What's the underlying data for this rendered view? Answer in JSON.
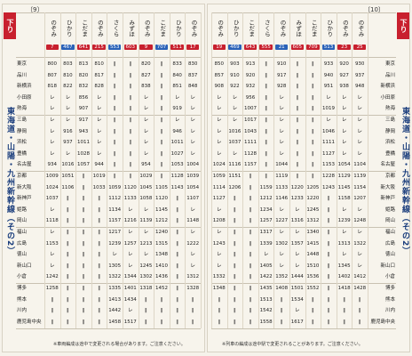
{
  "pages": [
    {
      "page_number": "〔9〕",
      "tab": "下り",
      "title": "東海道・山陽・九州新幹線（その2）",
      "footnote": "※車両編成は途中で変更される場合があります。ご注意ください。",
      "stations": [
        "東京",
        "品川",
        "新横浜",
        "小田原",
        "熱海",
        "三島",
        "静岡",
        "浜松",
        "豊橋",
        "名古屋",
        "京都",
        "新大阪",
        "新神戸",
        "姫路",
        "岡山",
        "福山",
        "広島",
        "徳山",
        "新山口",
        "小倉",
        "博多",
        "熊本",
        "川内",
        "鹿児島中央"
      ],
      "trains": [
        {
          "name": "のぞみ",
          "number": "7",
          "times": [
            "800",
            "807",
            "818",
            "レ",
            "レ",
            "レ",
            "レ",
            "レ",
            "レ",
            "934",
            "1009",
            "1024",
            "1037",
            "レ",
            "1118",
            "レ",
            "1153",
            "レ",
            "レ",
            "1242",
            "1258",
            "‖",
            "‖",
            "‖"
          ]
        },
        {
          "name": "ひかり",
          "number": "467",
          "times": [
            "803",
            "810",
            "822",
            "レ",
            "レ",
            "レ",
            "916",
            "937",
            "レ",
            "1016",
            "1051",
            "1106",
            "‖",
            "‖",
            "‖",
            "‖",
            "‖",
            "‖",
            "‖",
            "‖",
            "‖",
            "‖",
            "‖",
            "‖"
          ]
        },
        {
          "name": "こだま",
          "number": "641",
          "times": [
            "813",
            "820",
            "832",
            "856",
            "907",
            "917",
            "943",
            "1011",
            "1028",
            "1057",
            "‖",
            "‖",
            "‖",
            "‖",
            "‖",
            "‖",
            "‖",
            "‖",
            "‖",
            "‖",
            "‖",
            "‖",
            "‖",
            "‖"
          ]
        },
        {
          "name": "のぞみ",
          "number": "215",
          "times": [
            "810",
            "817",
            "828",
            "レ",
            "レ",
            "レ",
            "レ",
            "レ",
            "レ",
            "944",
            "1019",
            "1033",
            "‖",
            "‖",
            "‖",
            "‖",
            "‖",
            "‖",
            "‖",
            "‖",
            "‖",
            "‖",
            "‖",
            "‖"
          ]
        },
        {
          "name": "さくら",
          "number": "553",
          "times": [
            "‖",
            "‖",
            "‖",
            "‖",
            "‖",
            "‖",
            "‖",
            "‖",
            "‖",
            "‖",
            "‖",
            "1059",
            "1112",
            "1134",
            "1157",
            "1217",
            "1239",
            "レ",
            "1305",
            "1322",
            "1335",
            "1413",
            "1442",
            "1458"
          ]
        },
        {
          "name": "みずほ",
          "number": "603",
          "times": [
            "‖",
            "‖",
            "‖",
            "‖",
            "‖",
            "‖",
            "‖",
            "‖",
            "‖",
            "‖",
            "‖",
            "1120",
            "1133",
            "レ",
            "1216",
            "レ",
            "1257",
            "レ",
            "レ",
            "1344",
            "1401",
            "1434",
            "レ",
            "1517"
          ]
        },
        {
          "name": "のぞみ",
          "number": "9",
          "times": [
            "820",
            "827",
            "838",
            "レ",
            "レ",
            "レ",
            "レ",
            "レ",
            "レ",
            "954",
            "1029",
            "1045",
            "1058",
            "レ",
            "1139",
            "レ",
            "1213",
            "レ",
            "1245",
            "1302",
            "1318",
            "‖",
            "‖",
            "‖"
          ]
        },
        {
          "name": "こだま",
          "number": "707",
          "times": [
            "‖",
            "‖",
            "‖",
            "‖",
            "‖",
            "‖",
            "‖",
            "‖",
            "‖",
            "‖",
            "‖",
            "1105",
            "1120",
            "1145",
            "1212",
            "1240",
            "1315",
            "1348",
            "1410",
            "1436",
            "1452",
            "‖",
            "‖",
            "‖"
          ]
        },
        {
          "name": "ひかり",
          "number": "511",
          "times": [
            "833",
            "840",
            "851",
            "レ",
            "919",
            "レ",
            "946",
            "1011",
            "1027",
            "1053",
            "1128",
            "1143",
            "‖",
            "‖",
            "‖",
            "‖",
            "‖",
            "‖",
            "‖",
            "‖",
            "‖",
            "‖",
            "‖",
            "‖"
          ]
        },
        {
          "name": "のぞみ",
          "number": "17",
          "times": [
            "830",
            "837",
            "848",
            "レ",
            "レ",
            "レ",
            "レ",
            "レ",
            "レ",
            "1004",
            "1039",
            "1054",
            "1107",
            "レ",
            "1148",
            "レ",
            "1222",
            "レ",
            "レ",
            "1312",
            "1328",
            "‖",
            "‖",
            "‖"
          ]
        }
      ]
    },
    {
      "page_number": "〔10〕",
      "tab": "下り",
      "title": "東海道・山陽・九州新幹線（その2）",
      "footnote": "※列車の編成は途中駅で変更されることがあります。ご注意ください。",
      "stations": [
        "東京",
        "品川",
        "新横浜",
        "小田原",
        "熱海",
        "三島",
        "静岡",
        "浜松",
        "豊橋",
        "名古屋",
        "京都",
        "新大阪",
        "新神戸",
        "姫路",
        "岡山",
        "福山",
        "広島",
        "徳山",
        "新山口",
        "小倉",
        "博多",
        "熊本",
        "川内",
        "鹿児島中央"
      ],
      "trains": [
        {
          "name": "のぞみ",
          "number": "19",
          "times": [
            "850",
            "857",
            "908",
            "レ",
            "レ",
            "レ",
            "レ",
            "レ",
            "レ",
            "1024",
            "1059",
            "1114",
            "1127",
            "レ",
            "1208",
            "レ",
            "1243",
            "レ",
            "レ",
            "1332",
            "1348",
            "‖",
            "‖",
            "‖"
          ]
        },
        {
          "name": "ひかり",
          "number": "469",
          "times": [
            "903",
            "910",
            "922",
            "レ",
            "レ",
            "レ",
            "1016",
            "1037",
            "レ",
            "1116",
            "1151",
            "1206",
            "‖",
            "‖",
            "‖",
            "‖",
            "‖",
            "‖",
            "‖",
            "‖",
            "‖",
            "‖",
            "‖",
            "‖"
          ]
        },
        {
          "name": "こだま",
          "number": "643",
          "times": [
            "913",
            "920",
            "932",
            "956",
            "1007",
            "1017",
            "1043",
            "1111",
            "1128",
            "1157",
            "‖",
            "‖",
            "‖",
            "‖",
            "‖",
            "‖",
            "‖",
            "‖",
            "‖",
            "‖",
            "‖",
            "‖",
            "‖",
            "‖"
          ]
        },
        {
          "name": "さくら",
          "number": "555",
          "times": [
            "‖",
            "‖",
            "‖",
            "‖",
            "‖",
            "‖",
            "‖",
            "‖",
            "‖",
            "‖",
            "‖",
            "1159",
            "1212",
            "1234",
            "1257",
            "1317",
            "1339",
            "レ",
            "1405",
            "1422",
            "1435",
            "1513",
            "1542",
            "1558"
          ]
        },
        {
          "name": "のぞみ",
          "number": "21",
          "times": [
            "910",
            "917",
            "928",
            "レ",
            "レ",
            "レ",
            "レ",
            "レ",
            "レ",
            "1044",
            "1119",
            "1133",
            "1146",
            "レ",
            "1227",
            "レ",
            "1302",
            "レ",
            "レ",
            "1352",
            "1408",
            "‖",
            "‖",
            "‖"
          ]
        },
        {
          "name": "みずほ",
          "number": "605",
          "times": [
            "‖",
            "‖",
            "‖",
            "‖",
            "‖",
            "‖",
            "‖",
            "‖",
            "‖",
            "‖",
            "‖",
            "1220",
            "1233",
            "レ",
            "1316",
            "レ",
            "1357",
            "レ",
            "レ",
            "1444",
            "1501",
            "1534",
            "レ",
            "1617"
          ]
        },
        {
          "name": "こだま",
          "number": "709",
          "times": [
            "‖",
            "‖",
            "‖",
            "‖",
            "‖",
            "‖",
            "‖",
            "‖",
            "‖",
            "‖",
            "‖",
            "1205",
            "1220",
            "1245",
            "1312",
            "1340",
            "1415",
            "1448",
            "1510",
            "1536",
            "1552",
            "‖",
            "‖",
            "‖"
          ]
        },
        {
          "name": "ひかり",
          "number": "513",
          "times": [
            "933",
            "940",
            "951",
            "レ",
            "1019",
            "レ",
            "1046",
            "1111",
            "1127",
            "1153",
            "1228",
            "1243",
            "‖",
            "‖",
            "‖",
            "‖",
            "‖",
            "‖",
            "‖",
            "‖",
            "‖",
            "‖",
            "‖",
            "‖"
          ]
        },
        {
          "name": "のぞみ",
          "number": "23",
          "times": [
            "920",
            "927",
            "938",
            "レ",
            "レ",
            "レ",
            "レ",
            "レ",
            "レ",
            "1054",
            "1129",
            "1145",
            "1158",
            "レ",
            "1239",
            "レ",
            "1313",
            "レ",
            "1345",
            "1402",
            "1418",
            "‖",
            "‖",
            "‖"
          ]
        },
        {
          "name": "のぞみ",
          "number": "25",
          "times": [
            "930",
            "937",
            "948",
            "レ",
            "レ",
            "レ",
            "レ",
            "レ",
            "レ",
            "1104",
            "1139",
            "1154",
            "1207",
            "レ",
            "1248",
            "レ",
            "1322",
            "レ",
            "レ",
            "1412",
            "1428",
            "‖",
            "‖",
            "‖"
          ]
        }
      ]
    }
  ]
}
